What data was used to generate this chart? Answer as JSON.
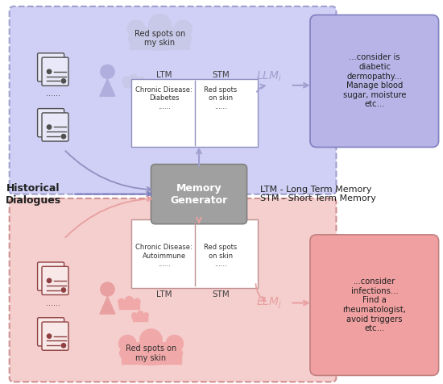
{
  "fig_width": 5.5,
  "fig_height": 4.76,
  "dpi": 100,
  "bg_color": "#ffffff",
  "upper_box_color": "#d0cff5",
  "lower_box_color": "#f5cece",
  "upper_border_color": "#a0a0d0",
  "lower_border_color": "#d09090",
  "ltm_stm_box_color_upper": "#ffffff",
  "ltm_stm_box_color_lower": "#ffffff",
  "response_box_color_upper": "#b8b4e8",
  "response_box_color_lower": "#f0a0a0",
  "docs_box_color_upper": "#b8b4e8",
  "docs_box_color_lower": "#f0a0a0",
  "memory_gen_color": "#a0a0a0",
  "cloud_color_upper": "#c8c8e8",
  "cloud_color_lower": "#f0a8a8",
  "person_color_upper": "#b0aedc",
  "person_color_lower": "#e8a0a0",
  "arrow_color_upper": "#a0a0d0",
  "arrow_color_lower": "#e8a0a0",
  "text_upper_response": "...consider is\ndiabetic\ndermopathy...\nManage blood\nsugar, moisture\netc...",
  "text_lower_response": "...consider\ninfections...\nFind a\nrheumatologist,\navoid triggers\netc...",
  "ltm_text_upper": "Chronic Disease:\nDiabetes\n......",
  "stm_text_upper": "Red spots\non skin\n......",
  "ltm_text_lower": "Chronic Disease:\nAutoimmune\n......",
  "stm_text_lower": "Red spots\non skin\n......",
  "cloud_text_upper": "Red spots on\nmy skin",
  "cloud_text_lower": "Red spots on\nmy skin",
  "memory_gen_text": "Memory\nGenerator",
  "historical_text": "Historical\nDialogues",
  "legend_text": "LTM - Long Term Memory\nSTM - Short Term Memory",
  "llm_i_text": "LLM",
  "llm_j_text": "LLM",
  "ltm_label_upper": "LTM",
  "stm_label_upper": "STM",
  "ltm_label_lower": "LTM",
  "stm_label_lower": "STM"
}
